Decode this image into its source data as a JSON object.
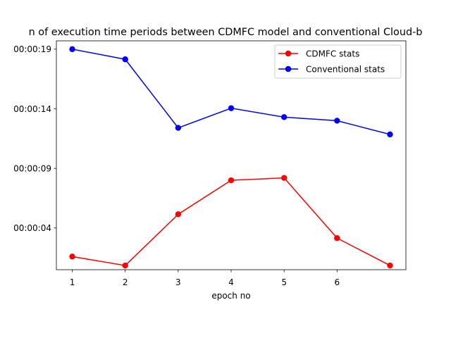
{
  "chart_data": {
    "type": "line",
    "title": "n of execution time periods between CDMFC model and conventional Cloud-b",
    "xlabel": "epoch no",
    "ylabel": "",
    "x": [
      1,
      2,
      3,
      4,
      5,
      6,
      7
    ],
    "x_ticks": [
      "1",
      "2",
      "3",
      "4",
      "5",
      "6"
    ],
    "x_tick_values": [
      1,
      2,
      3,
      4,
      5,
      6
    ],
    "xlim": [
      0.7,
      7.3
    ],
    "y_unit": "seconds",
    "ylim": [
      0.5,
      19.7
    ],
    "y_ticks": [
      "00:00:04",
      "00:00:09",
      "00:00:14",
      "00:00:19"
    ],
    "y_tick_values": [
      4,
      9,
      14,
      19
    ],
    "grid": false,
    "legend_position": "top-right",
    "series": [
      {
        "name": "CDMFC stats",
        "color": "#ff0000",
        "values": [
          1.6,
          0.85,
          5.15,
          8.0,
          8.2,
          3.15,
          0.85
        ]
      },
      {
        "name": "Conventional stats",
        "color": "#0000ff",
        "values": [
          19.0,
          18.15,
          12.4,
          14.05,
          13.3,
          13.0,
          11.85
        ]
      }
    ]
  }
}
